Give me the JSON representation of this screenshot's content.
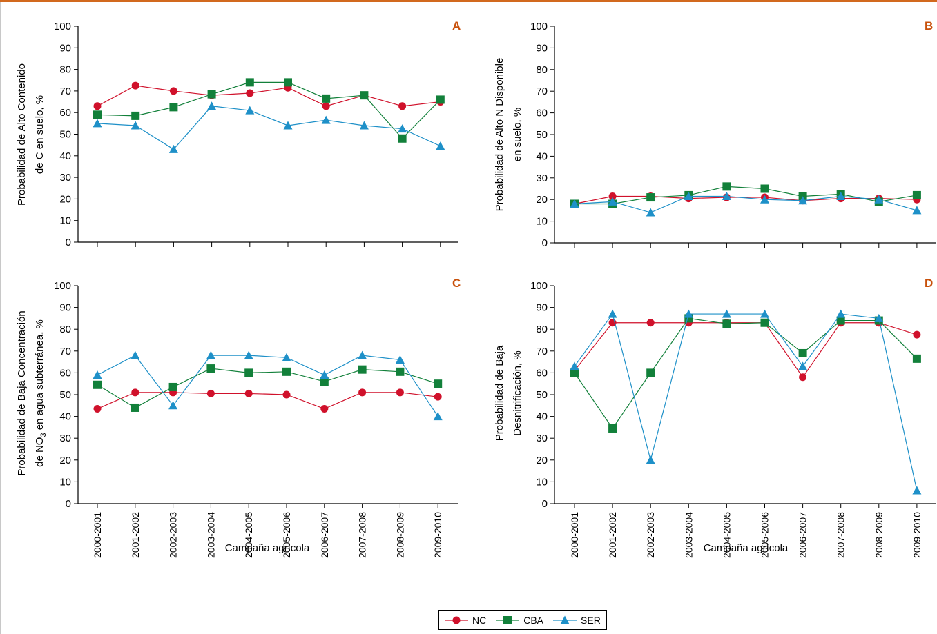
{
  "colors": {
    "NC": "#d0112b",
    "CBA": "#12803a",
    "SER": "#1e90c8",
    "panel_letter": "#c8500a",
    "top_rule": "#d2691e"
  },
  "legend": [
    {
      "key": "NC",
      "label": "NC",
      "marker": "circle"
    },
    {
      "key": "CBA",
      "label": "CBA",
      "marker": "square"
    },
    {
      "key": "SER",
      "label": "SER",
      "marker": "triangle"
    }
  ],
  "chart_data": [
    {
      "panel": "A",
      "type": "line",
      "ylabel": [
        "Probabilidad de Alto Contenido",
        "de C en suelo, %"
      ],
      "xlabel": "",
      "categories": [
        "2000-2001",
        "2001-2002",
        "2002-2003",
        "2003-2004",
        "2004-2005",
        "2005-2006",
        "2006-2007",
        "2007-2008",
        "2008-2009",
        "2009-2010"
      ],
      "show_xticklabels": false,
      "ylim": [
        0,
        100
      ],
      "yticks": [
        0,
        10,
        20,
        30,
        40,
        50,
        60,
        70,
        80,
        90,
        100
      ],
      "series": [
        {
          "name": "NC",
          "values": [
            63,
            72.5,
            70,
            68,
            69,
            71.5,
            63,
            68,
            63,
            65
          ]
        },
        {
          "name": "CBA",
          "values": [
            59,
            58.5,
            62.5,
            68.5,
            74,
            74,
            66.5,
            68,
            48,
            66
          ]
        },
        {
          "name": "SER",
          "values": [
            55,
            54,
            43,
            63,
            61,
            54,
            56.5,
            54,
            52.5,
            44.5
          ]
        }
      ]
    },
    {
      "panel": "B",
      "type": "line",
      "ylabel": [
        "Probabilidad de Alto  N Disponible",
        "en suelo, %"
      ],
      "xlabel": "",
      "categories": [
        "2000-2001",
        "2001-2002",
        "2002-2003",
        "2003-2004",
        "2004-2005",
        "2005-2006",
        "2006-2007",
        "2007-2008",
        "2008-2009",
        "2009-2010"
      ],
      "show_xticklabels": false,
      "ylim": [
        0,
        100
      ],
      "yticks": [
        0,
        10,
        20,
        30,
        40,
        50,
        60,
        70,
        80,
        90,
        100
      ],
      "series": [
        {
          "name": "NC",
          "values": [
            18,
            21.5,
            21.5,
            20.5,
            21,
            21,
            19.5,
            20.5,
            20.5,
            20
          ]
        },
        {
          "name": "CBA",
          "values": [
            18,
            18,
            21,
            22,
            26,
            25,
            21.5,
            22.5,
            19,
            22
          ]
        },
        {
          "name": "SER",
          "values": [
            18,
            19,
            14,
            21.5,
            21.5,
            20,
            19.5,
            21.5,
            20,
            15
          ]
        }
      ]
    },
    {
      "panel": "C",
      "type": "line",
      "ylabel": [
        "Probabilidad de Baja Concentración",
        "de NO",
        "3",
        " en agua subterránea, %"
      ],
      "xlabel": "Campaña agrícola",
      "categories": [
        "2000-2001",
        "2001-2002",
        "2002-2003",
        "2003-2004",
        "2004-2005",
        "2005-2006",
        "2006-2007",
        "2007-2008",
        "2008-2009",
        "2009-2010"
      ],
      "show_xticklabels": true,
      "ylim": [
        0,
        100
      ],
      "yticks": [
        0,
        10,
        20,
        30,
        40,
        50,
        60,
        70,
        80,
        90,
        100
      ],
      "series": [
        {
          "name": "NC",
          "values": [
            43.5,
            51,
            51,
            50.5,
            50.5,
            50,
            43.5,
            51,
            51,
            49
          ]
        },
        {
          "name": "CBA",
          "values": [
            54.5,
            44,
            53.5,
            62,
            60,
            60.5,
            56,
            61.5,
            60.5,
            55
          ]
        },
        {
          "name": "SER",
          "values": [
            59,
            68,
            45,
            68,
            68,
            67,
            59,
            68,
            66,
            40
          ]
        }
      ]
    },
    {
      "panel": "D",
      "type": "line",
      "ylabel": [
        "Probabilidad de Baja",
        "Desnitrificación, %"
      ],
      "xlabel": "Campaña agrícola",
      "categories": [
        "2000-2001",
        "2001-2002",
        "2002-2003",
        "2003-2004",
        "2004-2005",
        "2005-2006",
        "2006-2007",
        "2007-2008",
        "2008-2009",
        "2009-2010"
      ],
      "show_xticklabels": true,
      "ylim": [
        0,
        100
      ],
      "yticks": [
        0,
        10,
        20,
        30,
        40,
        50,
        60,
        70,
        80,
        90,
        100
      ],
      "series": [
        {
          "name": "NC",
          "values": [
            61,
            83,
            83,
            83,
            83,
            83,
            58,
            83,
            83,
            77.5
          ]
        },
        {
          "name": "CBA",
          "values": [
            60,
            34.5,
            60,
            85,
            82.5,
            83,
            69,
            84,
            84,
            66.5
          ]
        },
        {
          "name": "SER",
          "values": [
            63,
            87,
            20,
            87,
            87,
            87,
            63,
            87,
            85,
            6
          ]
        }
      ]
    }
  ]
}
